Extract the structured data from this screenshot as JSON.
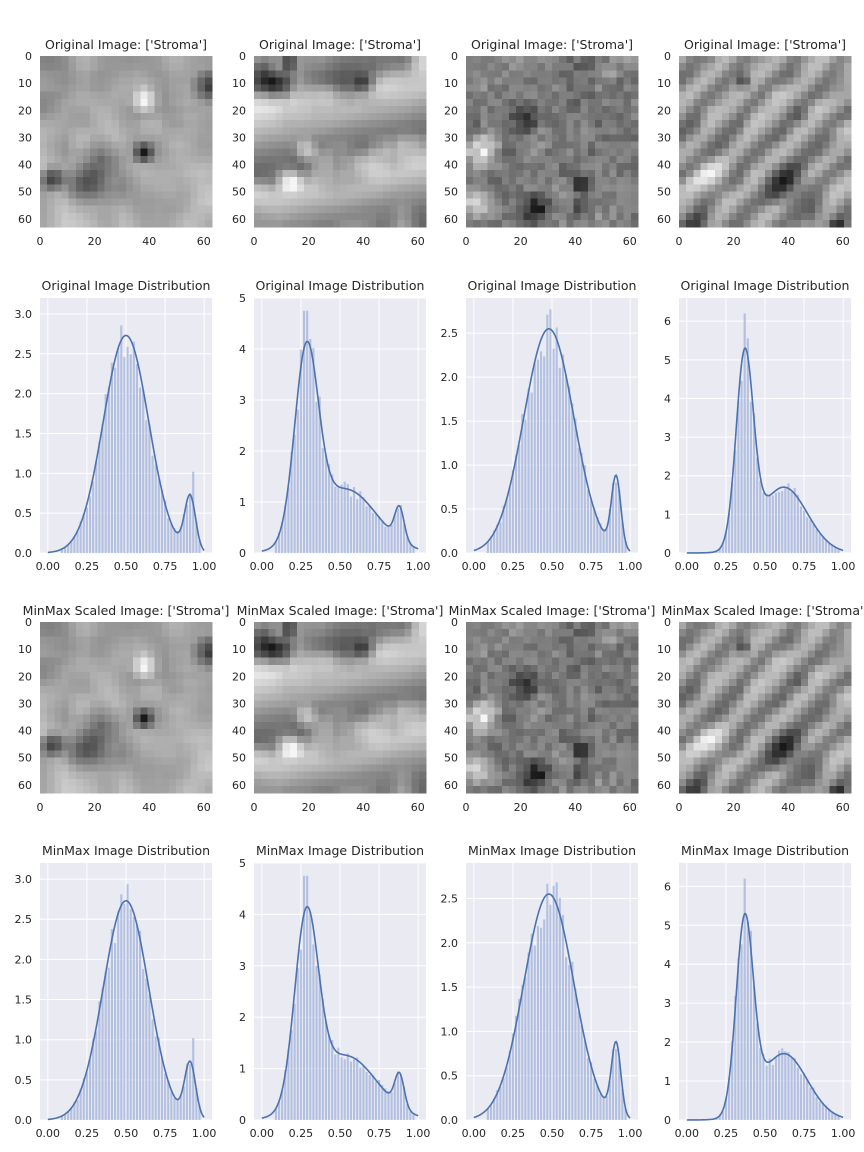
{
  "figure": {
    "image_panel_titles": [
      "Original Image: ['Stroma']",
      "MinMax Scaled Image: ['Stroma']"
    ],
    "dist_panel_titles": [
      "Original Image Distribution",
      "MinMax Image Distribution"
    ]
  },
  "chart_data": [
    {
      "type": "heatmap",
      "title": "Original Image: ['Stroma']",
      "colormap": "gray",
      "xticks": [
        0,
        20,
        40,
        60
      ],
      "yticks": [
        0,
        10,
        20,
        30,
        40,
        50,
        60
      ],
      "xlim": [
        0,
        63
      ],
      "ylim": [
        63,
        0
      ],
      "texture": "blotchy"
    },
    {
      "type": "heatmap",
      "title": "Original Image: ['Stroma']",
      "colormap": "gray",
      "xticks": [
        0,
        20,
        40,
        60
      ],
      "yticks": [
        0,
        10,
        20,
        30,
        40,
        50,
        60
      ],
      "xlim": [
        0,
        63
      ],
      "ylim": [
        63,
        0
      ],
      "texture": "streaks"
    },
    {
      "type": "heatmap",
      "title": "Original Image: ['Stroma']",
      "colormap": "gray",
      "xticks": [
        0,
        20,
        40,
        60
      ],
      "yticks": [
        0,
        10,
        20,
        30,
        40,
        50,
        60
      ],
      "xlim": [
        0,
        63
      ],
      "ylim": [
        63,
        0
      ],
      "texture": "speckled"
    },
    {
      "type": "heatmap",
      "title": "Original Image: ['Stroma']",
      "colormap": "gray",
      "xticks": [
        0,
        20,
        40,
        60
      ],
      "yticks": [
        0,
        10,
        20,
        30,
        40,
        50,
        60
      ],
      "xlim": [
        0,
        63
      ],
      "ylim": [
        63,
        0
      ],
      "texture": "diagonal"
    },
    {
      "type": "bar",
      "title": "Original Image Distribution",
      "xlim": [
        -0.05,
        1.05
      ],
      "ylim": [
        0,
        3.2
      ],
      "xticks": [
        0.0,
        0.25,
        0.5,
        0.75,
        1.0
      ],
      "xtick_labels": [
        "0.00",
        "0.25",
        "0.50",
        "0.75",
        "1.00"
      ],
      "yticks": [
        0,
        0.5,
        1.0,
        1.5,
        2.0,
        2.5,
        3.0
      ],
      "ytick_labels": [
        "0.0",
        "0.5",
        "1.0",
        "1.5",
        "2.0",
        "2.5",
        "3.0"
      ],
      "kde": {
        "mu": 0.5,
        "sigma": 0.145,
        "bump_x": 0.91,
        "bump_y": 0.25,
        "bump_s": 0.035,
        "peak": 2.73
      },
      "spike": {
        "x": 0.93,
        "value": 1.02
      }
    },
    {
      "type": "bar",
      "title": "Original Image Distribution",
      "xlim": [
        -0.05,
        1.05
      ],
      "ylim": [
        0,
        5.0
      ],
      "xticks": [
        0.0,
        0.25,
        0.5,
        0.75,
        1.0
      ],
      "xtick_labels": [
        "0.00",
        "0.25",
        "0.50",
        "0.75",
        "1.00"
      ],
      "yticks": [
        0,
        1,
        2,
        3,
        4,
        5
      ],
      "ytick_labels": [
        "0",
        "1",
        "2",
        "3",
        "4",
        "5"
      ],
      "kde": {
        "mu": 0.285,
        "sigma": 0.075,
        "tail_y": 0.35,
        "tail_s": 0.2,
        "bump_x": 0.88,
        "bump_y": 0.18,
        "bump_s": 0.03,
        "peak": 4.15
      },
      "spike": {
        "x": 0.28,
        "value": 4.75
      }
    },
    {
      "type": "bar",
      "title": "Original Image Distribution",
      "xlim": [
        -0.05,
        1.05
      ],
      "ylim": [
        0,
        2.9
      ],
      "xticks": [
        0.0,
        0.25,
        0.5,
        0.75,
        1.0
      ],
      "xtick_labels": [
        "0.00",
        "0.25",
        "0.50",
        "0.75",
        "1.00"
      ],
      "yticks": [
        0,
        0.5,
        1.0,
        1.5,
        2.0,
        2.5
      ],
      "ytick_labels": [
        "0.0",
        "0.5",
        "1.0",
        "1.5",
        "2.0",
        "2.5"
      ],
      "kde": {
        "mu": 0.48,
        "sigma": 0.16,
        "bump_x": 0.91,
        "bump_y": 0.32,
        "bump_s": 0.03,
        "peak": 2.55
      },
      "spike": {
        "x": 0.9,
        "value": 0.8
      }
    },
    {
      "type": "bar",
      "title": "Original Image Distribution",
      "xlim": [
        -0.05,
        1.05
      ],
      "ylim": [
        0,
        6.6
      ],
      "xticks": [
        0.0,
        0.25,
        0.5,
        0.75,
        1.0
      ],
      "xtick_labels": [
        "0.00",
        "0.25",
        "0.50",
        "0.75",
        "1.00"
      ],
      "yticks": [
        0,
        1,
        2,
        3,
        4,
        5,
        6
      ],
      "ytick_labels": [
        "0",
        "1",
        "2",
        "3",
        "4",
        "5",
        "6"
      ],
      "kde": {
        "mu": 0.37,
        "sigma": 0.055,
        "tail_y": 0.35,
        "tail_s": 0.15,
        "peak": 5.3
      },
      "spike": {
        "x": 0.37,
        "value": 6.2
      }
    },
    {
      "type": "heatmap",
      "title": "MinMax Scaled Image: ['Stroma']",
      "colormap": "gray",
      "xticks": [
        0,
        20,
        40,
        60
      ],
      "yticks": [
        0,
        10,
        20,
        30,
        40,
        50,
        60
      ],
      "xlim": [
        0,
        63
      ],
      "ylim": [
        63,
        0
      ],
      "texture": "blotchy"
    },
    {
      "type": "heatmap",
      "title": "MinMax Scaled Image: ['Stroma']",
      "colormap": "gray",
      "xticks": [
        0,
        20,
        40,
        60
      ],
      "yticks": [
        0,
        10,
        20,
        30,
        40,
        50,
        60
      ],
      "xlim": [
        0,
        63
      ],
      "ylim": [
        63,
        0
      ],
      "texture": "streaks"
    },
    {
      "type": "heatmap",
      "title": "MinMax Scaled Image: ['Stroma']",
      "colormap": "gray",
      "xticks": [
        0,
        20,
        40,
        60
      ],
      "yticks": [
        0,
        10,
        20,
        30,
        40,
        50,
        60
      ],
      "xlim": [
        0,
        63
      ],
      "ylim": [
        63,
        0
      ],
      "texture": "speckled"
    },
    {
      "type": "heatmap",
      "title": "MinMax Scaled Image: ['Stroma']",
      "colormap": "gray",
      "xticks": [
        0,
        20,
        40,
        60
      ],
      "yticks": [
        0,
        10,
        20,
        30,
        40,
        50,
        60
      ],
      "xlim": [
        0,
        63
      ],
      "ylim": [
        63,
        0
      ],
      "texture": "diagonal"
    },
    {
      "type": "bar",
      "title": "MinMax Image Distribution",
      "xlim": [
        -0.05,
        1.05
      ],
      "ylim": [
        0,
        3.2
      ],
      "xticks": [
        0.0,
        0.25,
        0.5,
        0.75,
        1.0
      ],
      "xtick_labels": [
        "0.00",
        "0.25",
        "0.50",
        "0.75",
        "1.00"
      ],
      "yticks": [
        0,
        0.5,
        1.0,
        1.5,
        2.0,
        2.5,
        3.0
      ],
      "ytick_labels": [
        "0.0",
        "0.5",
        "1.0",
        "1.5",
        "2.0",
        "2.5",
        "3.0"
      ],
      "kde": {
        "mu": 0.5,
        "sigma": 0.145,
        "bump_x": 0.91,
        "bump_y": 0.25,
        "bump_s": 0.035,
        "peak": 2.73
      },
      "spike": {
        "x": 0.93,
        "value": 1.02
      }
    },
    {
      "type": "bar",
      "title": "MinMax Image Distribution",
      "xlim": [
        -0.05,
        1.05
      ],
      "ylim": [
        0,
        5.0
      ],
      "xticks": [
        0.0,
        0.25,
        0.5,
        0.75,
        1.0
      ],
      "xtick_labels": [
        "0.00",
        "0.25",
        "0.50",
        "0.75",
        "1.00"
      ],
      "yticks": [
        0,
        1,
        2,
        3,
        4,
        5
      ],
      "ytick_labels": [
        "0",
        "1",
        "2",
        "3",
        "4",
        "5"
      ],
      "kde": {
        "mu": 0.285,
        "sigma": 0.075,
        "tail_y": 0.35,
        "tail_s": 0.2,
        "bump_x": 0.88,
        "bump_y": 0.18,
        "bump_s": 0.03,
        "peak": 4.15
      },
      "spike": {
        "x": 0.28,
        "value": 4.75
      }
    },
    {
      "type": "bar",
      "title": "MinMax Image Distribution",
      "xlim": [
        -0.05,
        1.05
      ],
      "ylim": [
        0,
        2.9
      ],
      "xticks": [
        0.0,
        0.25,
        0.5,
        0.75,
        1.0
      ],
      "xtick_labels": [
        "0.00",
        "0.25",
        "0.50",
        "0.75",
        "1.00"
      ],
      "yticks": [
        0,
        0.5,
        1.0,
        1.5,
        2.0,
        2.5
      ],
      "ytick_labels": [
        "0.0",
        "0.5",
        "1.0",
        "1.5",
        "2.0",
        "2.5"
      ],
      "kde": {
        "mu": 0.48,
        "sigma": 0.16,
        "bump_x": 0.91,
        "bump_y": 0.32,
        "bump_s": 0.03,
        "peak": 2.55
      },
      "spike": {
        "x": 0.9,
        "value": 0.8
      }
    },
    {
      "type": "bar",
      "title": "MinMax Image Distribution",
      "xlim": [
        -0.05,
        1.05
      ],
      "ylim": [
        0,
        6.6
      ],
      "xticks": [
        0.0,
        0.25,
        0.5,
        0.75,
        1.0
      ],
      "xtick_labels": [
        "0.00",
        "0.25",
        "0.50",
        "0.75",
        "1.00"
      ],
      "yticks": [
        0,
        1,
        2,
        3,
        4,
        5,
        6
      ],
      "ytick_labels": [
        "0",
        "1",
        "2",
        "3",
        "4",
        "5",
        "6"
      ],
      "kde": {
        "mu": 0.37,
        "sigma": 0.055,
        "tail_y": 0.35,
        "tail_s": 0.15,
        "peak": 5.3
      },
      "spike": {
        "x": 0.37,
        "value": 6.2
      }
    }
  ],
  "colors": {
    "axes_bg": "#eaeaf2",
    "grid": "#ffffff",
    "bar_fill": "#a9b9dd",
    "kde_line": "#4c72b0",
    "text": "#262626"
  }
}
